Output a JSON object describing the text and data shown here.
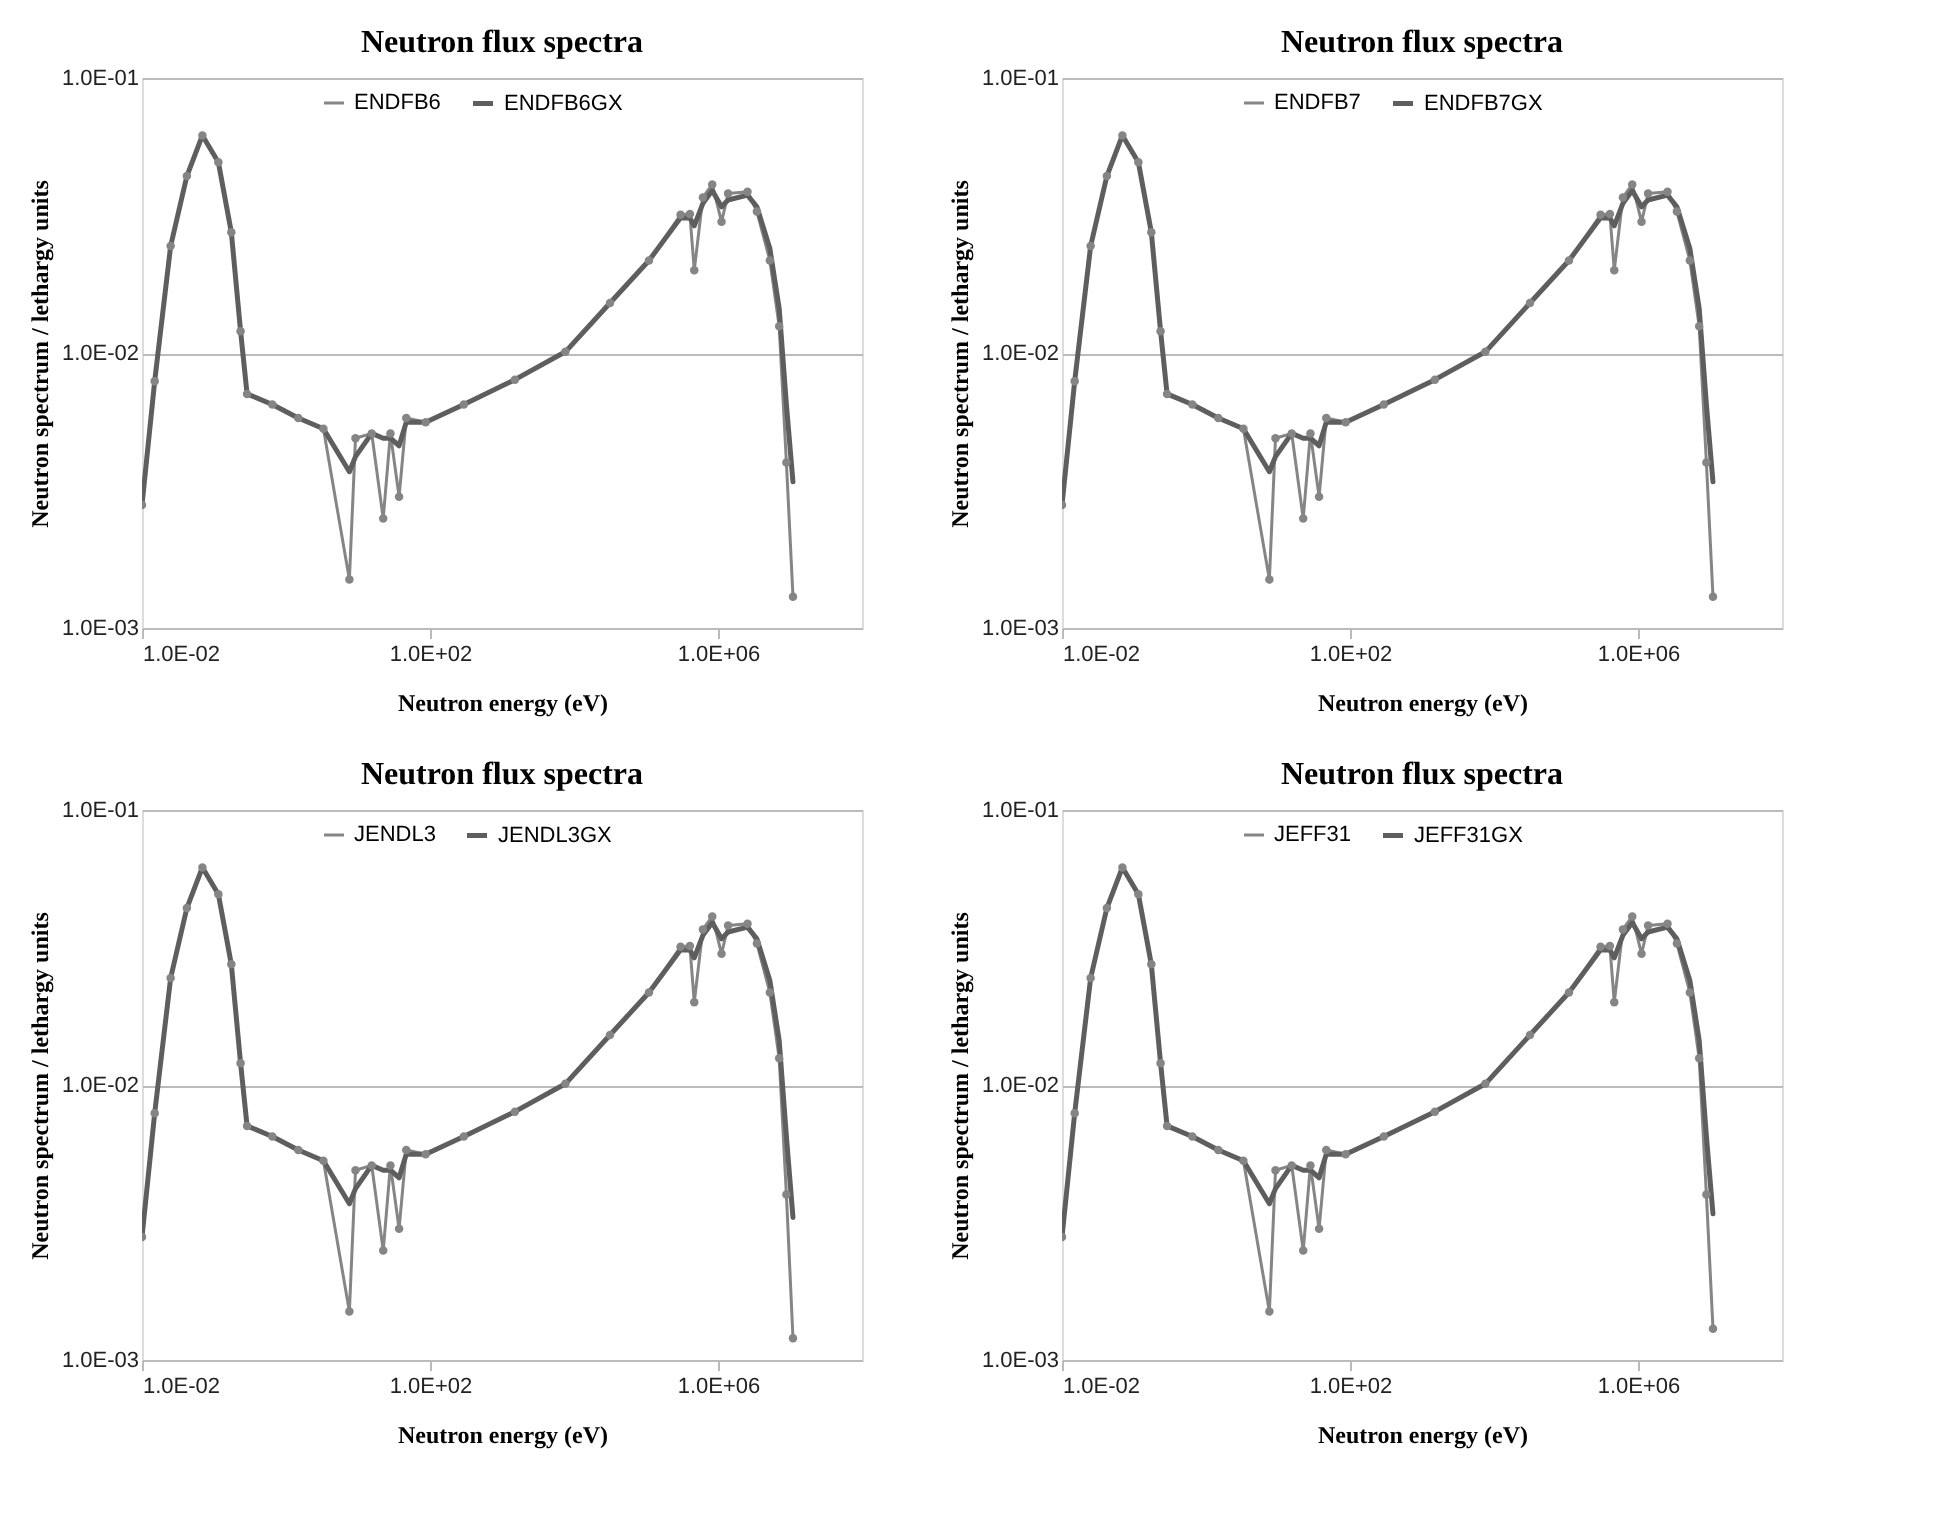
{
  "chart_data": [
    {
      "type": "line",
      "title": "Neutron flux spectra",
      "xlabel": "Neutron energy (eV)",
      "ylabel": "Neutron spectrum / lethargy units",
      "log": "xy",
      "grid": "y",
      "legend": "top",
      "xlim": [
        0.01,
        100000000
      ],
      "ylim": [
        0.001,
        0.1
      ],
      "xticks": [
        {
          "value": 0.01,
          "label": "1.0E-02"
        },
        {
          "value": 100,
          "label": "1.0E+02"
        },
        {
          "value": 1000000,
          "label": "1.0E+06"
        }
      ],
      "yticks": [
        {
          "value": 0.001,
          "label": "1.0E-03"
        },
        {
          "value": 0.01,
          "label": "1.0E-02"
        },
        {
          "value": 0.1,
          "label": "1.0E-01"
        }
      ],
      "x": [
        0.01,
        0.015,
        0.025,
        0.042,
        0.069,
        0.115,
        0.174,
        0.234,
        0.288,
        0.646,
        1.48,
        3.31,
        7.59,
        9.23,
        15.5,
        22.4,
        28.2,
        37.2,
        46.8,
        87.1,
        295,
        1510,
        7590,
        31600,
        110000,
        302000,
        407000,
        468000,
        617000,
        832000,
        1120000,
        1380000,
        2570000,
        3470000,
        5250000,
        7080000,
        8910000,
        11000000
      ],
      "series": [
        {
          "name": "ENDFB6",
          "color": "#858585",
          "marker": "circle",
          "values": [
            0.0028,
            0.0079,
            0.0245,
            0.044,
            0.0618,
            0.0494,
            0.0275,
            0.012,
            0.0071,
            0.0065,
            0.0058,
            0.0053,
            0.0015,
            0.0049,
            0.0051,
            0.0025,
            0.0051,
            0.003,
            0.0058,
            0.0056,
            0.0065,
            0.008,
            0.0101,
            0.0152,
            0.0217,
            0.0318,
            0.032,
            0.02,
            0.0368,
            0.041,
            0.03,
            0.038,
            0.0386,
            0.0327,
            0.0217,
            0.0125,
            0.004,
            0.0013
          ]
        },
        {
          "name": "ENDFB6GX",
          "color": "#5e5e5e",
          "marker": "none",
          "values": [
            0.0028,
            0.0079,
            0.0245,
            0.044,
            0.0618,
            0.0494,
            0.0275,
            0.012,
            0.0071,
            0.0065,
            0.0058,
            0.0053,
            0.0037,
            0.0042,
            0.0051,
            0.0049,
            0.0049,
            0.0046,
            0.0056,
            0.0056,
            0.0065,
            0.008,
            0.0101,
            0.0152,
            0.0217,
            0.031,
            0.031,
            0.029,
            0.035,
            0.039,
            0.034,
            0.036,
            0.0375,
            0.034,
            0.024,
            0.0145,
            0.0065,
            0.0034
          ]
        }
      ]
    },
    {
      "type": "line",
      "title": "Neutron flux spectra",
      "xlabel": "Neutron energy (eV)",
      "ylabel": "Neutron spectrum / lethargy units",
      "log": "xy",
      "grid": "y",
      "legend": "top",
      "xlim": [
        0.01,
        100000000
      ],
      "ylim": [
        0.001,
        0.1
      ],
      "xticks": [
        {
          "value": 0.01,
          "label": "1.0E-02"
        },
        {
          "value": 100,
          "label": "1.0E+02"
        },
        {
          "value": 1000000,
          "label": "1.0E+06"
        }
      ],
      "yticks": [
        {
          "value": 0.001,
          "label": "1.0E-03"
        },
        {
          "value": 0.01,
          "label": "1.0E-02"
        },
        {
          "value": 0.1,
          "label": "1.0E-01"
        }
      ],
      "x": [
        0.01,
        0.015,
        0.025,
        0.042,
        0.069,
        0.115,
        0.174,
        0.234,
        0.288,
        0.646,
        1.48,
        3.31,
        7.59,
        9.23,
        15.5,
        22.4,
        28.2,
        37.2,
        46.8,
        87.1,
        295,
        1510,
        7590,
        31600,
        110000,
        302000,
        407000,
        468000,
        617000,
        832000,
        1120000,
        1380000,
        2570000,
        3470000,
        5250000,
        7080000,
        8910000,
        11000000
      ],
      "series": [
        {
          "name": "ENDFB7",
          "color": "#858585",
          "marker": "circle",
          "values": [
            0.0028,
            0.0079,
            0.0245,
            0.044,
            0.0618,
            0.0494,
            0.0275,
            0.012,
            0.0071,
            0.0065,
            0.0058,
            0.0053,
            0.0015,
            0.0049,
            0.0051,
            0.0025,
            0.0051,
            0.003,
            0.0058,
            0.0056,
            0.0065,
            0.008,
            0.0101,
            0.0152,
            0.0217,
            0.0318,
            0.032,
            0.02,
            0.0368,
            0.041,
            0.03,
            0.038,
            0.0386,
            0.0327,
            0.0217,
            0.0125,
            0.004,
            0.0013
          ]
        },
        {
          "name": "ENDFB7GX",
          "color": "#5e5e5e",
          "marker": "none",
          "values": [
            0.0028,
            0.0079,
            0.0245,
            0.044,
            0.0618,
            0.0494,
            0.0275,
            0.012,
            0.0071,
            0.0065,
            0.0058,
            0.0053,
            0.0037,
            0.0042,
            0.0051,
            0.0049,
            0.0049,
            0.0046,
            0.0056,
            0.0056,
            0.0065,
            0.008,
            0.0101,
            0.0152,
            0.0217,
            0.031,
            0.031,
            0.029,
            0.035,
            0.039,
            0.034,
            0.036,
            0.0375,
            0.034,
            0.024,
            0.0145,
            0.0065,
            0.0034
          ]
        }
      ]
    },
    {
      "type": "line",
      "title": "Neutron flux spectra",
      "xlabel": "Neutron energy (eV)",
      "ylabel": "Neutron spectrum / lethargy units",
      "log": "xy",
      "grid": "y",
      "legend": "top",
      "xlim": [
        0.01,
        100000000
      ],
      "ylim": [
        0.001,
        0.1
      ],
      "xticks": [
        {
          "value": 0.01,
          "label": "1.0E-02"
        },
        {
          "value": 100,
          "label": "1.0E+02"
        },
        {
          "value": 1000000,
          "label": "1.0E+06"
        }
      ],
      "yticks": [
        {
          "value": 0.001,
          "label": "1.0E-03"
        },
        {
          "value": 0.01,
          "label": "1.0E-02"
        },
        {
          "value": 0.1,
          "label": "1.0E-01"
        }
      ],
      "x": [
        0.01,
        0.015,
        0.025,
        0.042,
        0.069,
        0.115,
        0.174,
        0.234,
        0.288,
        0.646,
        1.48,
        3.31,
        7.59,
        9.23,
        15.5,
        22.4,
        28.2,
        37.2,
        46.8,
        87.1,
        295,
        1510,
        7590,
        31600,
        110000,
        302000,
        407000,
        468000,
        617000,
        832000,
        1120000,
        1380000,
        2570000,
        3470000,
        5250000,
        7080000,
        8910000,
        11000000
      ],
      "series": [
        {
          "name": "JENDL3",
          "color": "#858585",
          "marker": "circle",
          "values": [
            0.0028,
            0.0079,
            0.0245,
            0.044,
            0.0618,
            0.0494,
            0.0275,
            0.012,
            0.0071,
            0.0065,
            0.0058,
            0.0053,
            0.0015,
            0.0049,
            0.0051,
            0.0025,
            0.0051,
            0.003,
            0.0058,
            0.0056,
            0.0065,
            0.008,
            0.0101,
            0.0152,
            0.0217,
            0.0318,
            0.032,
            0.02,
            0.0368,
            0.041,
            0.03,
            0.038,
            0.0386,
            0.0327,
            0.0217,
            0.0125,
            0.004,
            0.0012
          ]
        },
        {
          "name": "JENDL3GX",
          "color": "#5e5e5e",
          "marker": "none",
          "values": [
            0.0028,
            0.0079,
            0.0245,
            0.044,
            0.0618,
            0.0494,
            0.0275,
            0.012,
            0.0071,
            0.0065,
            0.0058,
            0.0053,
            0.0037,
            0.0042,
            0.0051,
            0.0049,
            0.0049,
            0.0046,
            0.0056,
            0.0056,
            0.0065,
            0.008,
            0.0101,
            0.0152,
            0.0217,
            0.031,
            0.031,
            0.029,
            0.035,
            0.039,
            0.034,
            0.036,
            0.0375,
            0.034,
            0.024,
            0.0145,
            0.0065,
            0.0033
          ]
        }
      ]
    },
    {
      "type": "line",
      "title": "Neutron flux spectra",
      "xlabel": "Neutron energy (eV)",
      "ylabel": "Neutron spectrum / lethargy units",
      "log": "xy",
      "grid": "y",
      "legend": "top",
      "xlim": [
        0.01,
        100000000
      ],
      "ylim": [
        0.001,
        0.1
      ],
      "xticks": [
        {
          "value": 0.01,
          "label": "1.0E-02"
        },
        {
          "value": 100,
          "label": "1.0E+02"
        },
        {
          "value": 1000000,
          "label": "1.0E+06"
        }
      ],
      "yticks": [
        {
          "value": 0.001,
          "label": "1.0E-03"
        },
        {
          "value": 0.01,
          "label": "1.0E-02"
        },
        {
          "value": 0.1,
          "label": "1.0E-01"
        }
      ],
      "x": [
        0.01,
        0.015,
        0.025,
        0.042,
        0.069,
        0.115,
        0.174,
        0.234,
        0.288,
        0.646,
        1.48,
        3.31,
        7.59,
        9.23,
        15.5,
        22.4,
        28.2,
        37.2,
        46.8,
        87.1,
        295,
        1510,
        7590,
        31600,
        110000,
        302000,
        407000,
        468000,
        617000,
        832000,
        1120000,
        1380000,
        2570000,
        3470000,
        5250000,
        7080000,
        8910000,
        11000000
      ],
      "series": [
        {
          "name": "JEFF31",
          "color": "#858585",
          "marker": "circle",
          "values": [
            0.0028,
            0.0079,
            0.0245,
            0.044,
            0.0618,
            0.0494,
            0.0275,
            0.012,
            0.0071,
            0.0065,
            0.0058,
            0.0053,
            0.0015,
            0.0049,
            0.0051,
            0.0025,
            0.0051,
            0.003,
            0.0058,
            0.0056,
            0.0065,
            0.008,
            0.0101,
            0.0152,
            0.0217,
            0.0318,
            0.032,
            0.02,
            0.0368,
            0.041,
            0.03,
            0.038,
            0.0386,
            0.0327,
            0.0217,
            0.0125,
            0.004,
            0.0013
          ]
        },
        {
          "name": "JEFF31GX",
          "color": "#5e5e5e",
          "marker": "none",
          "values": [
            0.0028,
            0.0079,
            0.0245,
            0.044,
            0.0618,
            0.0494,
            0.0275,
            0.012,
            0.0071,
            0.0065,
            0.0058,
            0.0053,
            0.0037,
            0.0042,
            0.0051,
            0.0049,
            0.0049,
            0.0046,
            0.0056,
            0.0056,
            0.0065,
            0.008,
            0.0101,
            0.0152,
            0.0217,
            0.031,
            0.031,
            0.029,
            0.035,
            0.039,
            0.034,
            0.036,
            0.0375,
            0.034,
            0.024,
            0.0145,
            0.0065,
            0.0034
          ]
        }
      ]
    }
  ]
}
